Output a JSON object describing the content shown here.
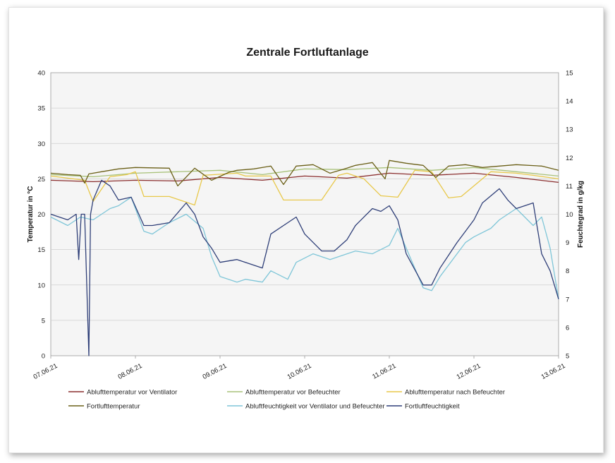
{
  "chart_data": {
    "type": "line",
    "title": "Zentrale Fortluftanlage",
    "ylabel": "Temperatur in °C",
    "y2label": "Feuchtegrad in g/kg",
    "ylim": [
      0,
      40
    ],
    "y2lim": [
      5,
      15
    ],
    "yticks": [
      "0",
      "5",
      "10",
      "15",
      "20",
      "25",
      "30",
      "35",
      "40"
    ],
    "y2ticks": [
      "5",
      "6",
      "7",
      "8",
      "9",
      "10",
      "11",
      "12",
      "13",
      "14",
      "15"
    ],
    "xlim": [
      0,
      6
    ],
    "xticks": [
      "07.06.21",
      "08.06.21",
      "09.06.21",
      "10.06.21",
      "11.06.21",
      "12.06.21",
      "13.06.21"
    ],
    "grid": true,
    "legend_position": "bottom",
    "series": [
      {
        "name": "Ablufttemperatur vor Ventilator",
        "color": "#8b2e2e",
        "axis": "left",
        "x": [
          0,
          0.5,
          1,
          1.5,
          2,
          2.5,
          3,
          3.5,
          4,
          4.5,
          5,
          5.5,
          6
        ],
        "y": [
          24.8,
          24.6,
          24.8,
          24.7,
          25.2,
          24.8,
          25.4,
          25.1,
          25.8,
          25.5,
          25.8,
          25.2,
          24.5
        ]
      },
      {
        "name": "Ablufttemperatur vor Befeuchter",
        "color": "#a9c27a",
        "axis": "left",
        "x": [
          0,
          0.5,
          1,
          1.5,
          2,
          2.5,
          3,
          3.5,
          4,
          4.5,
          5,
          5.5,
          6
        ],
        "y": [
          25.6,
          25.3,
          25.8,
          26.0,
          26.2,
          25.6,
          26.4,
          26.3,
          26.6,
          26.2,
          26.6,
          26.0,
          25.4
        ]
      },
      {
        "name": "Ablufttemperatur nach Befeuchter",
        "color": "#e8c84a",
        "axis": "left",
        "x": [
          0,
          0.2,
          0.4,
          0.5,
          0.7,
          0.9,
          1.0,
          1.1,
          1.4,
          1.7,
          1.8,
          2.2,
          2.3,
          2.6,
          2.75,
          2.9,
          3.2,
          3.4,
          3.5,
          3.7,
          3.9,
          4.1,
          4.3,
          4.5,
          4.7,
          4.85,
          5.2,
          5.5,
          5.7,
          6
        ],
        "y": [
          25.4,
          25.1,
          24.8,
          21.8,
          25.3,
          25.6,
          26.0,
          22.5,
          22.5,
          21.3,
          25.5,
          25.8,
          25.4,
          25.4,
          22.0,
          22.0,
          22.0,
          25.5,
          25.8,
          25.0,
          22.6,
          22.4,
          26.2,
          26.0,
          22.3,
          22.5,
          26.0,
          25.8,
          25.5,
          25.0
        ]
      },
      {
        "name": "Fortlufttemperatur",
        "color": "#6b6018",
        "axis": "left",
        "x": [
          0,
          0.2,
          0.35,
          0.4,
          0.45,
          0.6,
          0.8,
          1.0,
          1.4,
          1.5,
          1.7,
          1.9,
          2.1,
          2.2,
          2.4,
          2.6,
          2.75,
          2.9,
          3.1,
          3.3,
          3.5,
          3.6,
          3.8,
          3.95,
          4.0,
          4.2,
          4.4,
          4.55,
          4.7,
          4.9,
          5.1,
          5.5,
          5.8,
          6
        ],
        "y": [
          25.8,
          25.6,
          25.5,
          24.4,
          25.7,
          26.0,
          26.4,
          26.6,
          26.5,
          24.0,
          26.5,
          24.8,
          25.9,
          26.2,
          26.4,
          26.8,
          24.2,
          26.8,
          27.0,
          25.8,
          26.5,
          26.9,
          27.3,
          25.0,
          27.6,
          27.2,
          26.9,
          25.2,
          26.8,
          27.0,
          26.6,
          27.0,
          26.8,
          26.2
        ]
      },
      {
        "name": "Abluftfeuchtigkeit vor Ventilator und Befeuchter",
        "color": "#7fc6d8",
        "axis": "right",
        "x": [
          0,
          0.2,
          0.35,
          0.5,
          0.6,
          0.7,
          0.8,
          0.95,
          1.1,
          1.2,
          1.4,
          1.6,
          1.8,
          1.9,
          2.0,
          2.2,
          2.3,
          2.5,
          2.6,
          2.8,
          2.9,
          3.1,
          3.3,
          3.5,
          3.6,
          3.8,
          4.0,
          4.1,
          4.2,
          4.4,
          4.5,
          4.6,
          4.8,
          4.9,
          5.0,
          5.2,
          5.3,
          5.5,
          5.7,
          5.8,
          5.9,
          6
        ],
        "y": [
          9.9,
          9.6,
          9.9,
          9.8,
          10.0,
          10.2,
          10.3,
          10.6,
          9.4,
          9.3,
          9.7,
          10.0,
          9.5,
          8.5,
          7.8,
          7.6,
          7.7,
          7.6,
          8.0,
          7.7,
          8.3,
          8.6,
          8.4,
          8.6,
          8.7,
          8.6,
          8.9,
          9.5,
          8.8,
          7.4,
          7.3,
          7.8,
          8.6,
          9.0,
          9.2,
          9.5,
          9.8,
          10.2,
          9.6,
          9.9,
          8.8,
          7.0
        ]
      },
      {
        "name": "Fortluftfeuchtigkeit",
        "color": "#2f3f78",
        "axis": "right",
        "x": [
          0,
          0.2,
          0.3,
          0.33,
          0.36,
          0.4,
          0.45,
          0.47,
          0.5,
          0.6,
          0.7,
          0.8,
          0.95,
          1.1,
          1.2,
          1.4,
          1.6,
          1.7,
          1.8,
          1.9,
          2.0,
          2.2,
          2.4,
          2.5,
          2.6,
          2.8,
          2.9,
          3.0,
          3.2,
          3.35,
          3.5,
          3.6,
          3.8,
          3.9,
          4.0,
          4.1,
          4.2,
          4.4,
          4.5,
          4.6,
          4.8,
          4.9,
          5.0,
          5.1,
          5.3,
          5.4,
          5.5,
          5.6,
          5.7,
          5.8,
          5.9,
          6
        ],
        "y": [
          10.0,
          9.8,
          10.0,
          8.4,
          10.0,
          10.0,
          5.0,
          10.0,
          10.5,
          11.2,
          11.0,
          10.5,
          10.6,
          9.6,
          9.6,
          9.7,
          10.4,
          10.0,
          9.2,
          8.8,
          8.3,
          8.4,
          8.2,
          8.1,
          9.3,
          9.7,
          9.9,
          9.3,
          8.7,
          8.7,
          9.1,
          9.6,
          10.2,
          10.1,
          10.3,
          9.8,
          8.6,
          7.5,
          7.5,
          8.1,
          9.0,
          9.4,
          9.8,
          10.4,
          10.9,
          10.5,
          10.2,
          10.3,
          10.4,
          8.6,
          8.0,
          7.0
        ]
      }
    ]
  }
}
